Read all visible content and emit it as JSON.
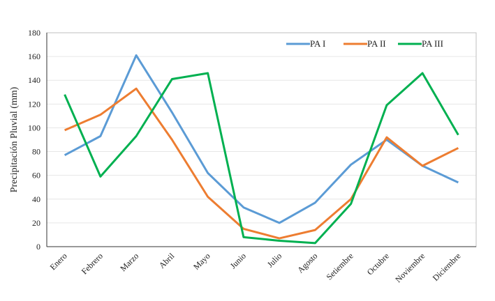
{
  "chart_data": {
    "type": "line",
    "title": "",
    "xlabel": "",
    "ylabel": "Precipitación Pluvial (mm)",
    "ylim": [
      0,
      180
    ],
    "yticks": [
      0,
      20,
      40,
      60,
      80,
      100,
      120,
      140,
      160,
      180
    ],
    "grid": true,
    "legend_position": "top-right",
    "categories": [
      "Enero",
      "Febrero",
      "Marzo",
      "Abril",
      "Mayo",
      "Junio",
      "Julio",
      "Agosto",
      "Setiembre",
      "Octubre",
      "Noviembre",
      "Diciembre"
    ],
    "series": [
      {
        "name": "PA I",
        "color": "#5b9bd5",
        "values": [
          77,
          93,
          161,
          113,
          62,
          33,
          20,
          37,
          69,
          90,
          68,
          54
        ]
      },
      {
        "name": "PA II",
        "color": "#ed7d31",
        "values": [
          98,
          111,
          133,
          90,
          42,
          15,
          7,
          14,
          40,
          92,
          68,
          83
        ]
      },
      {
        "name": "PA III",
        "color": "#00b050",
        "values": [
          128,
          59,
          93,
          141,
          146,
          8,
          5,
          3,
          36,
          119,
          146,
          94
        ]
      }
    ]
  }
}
